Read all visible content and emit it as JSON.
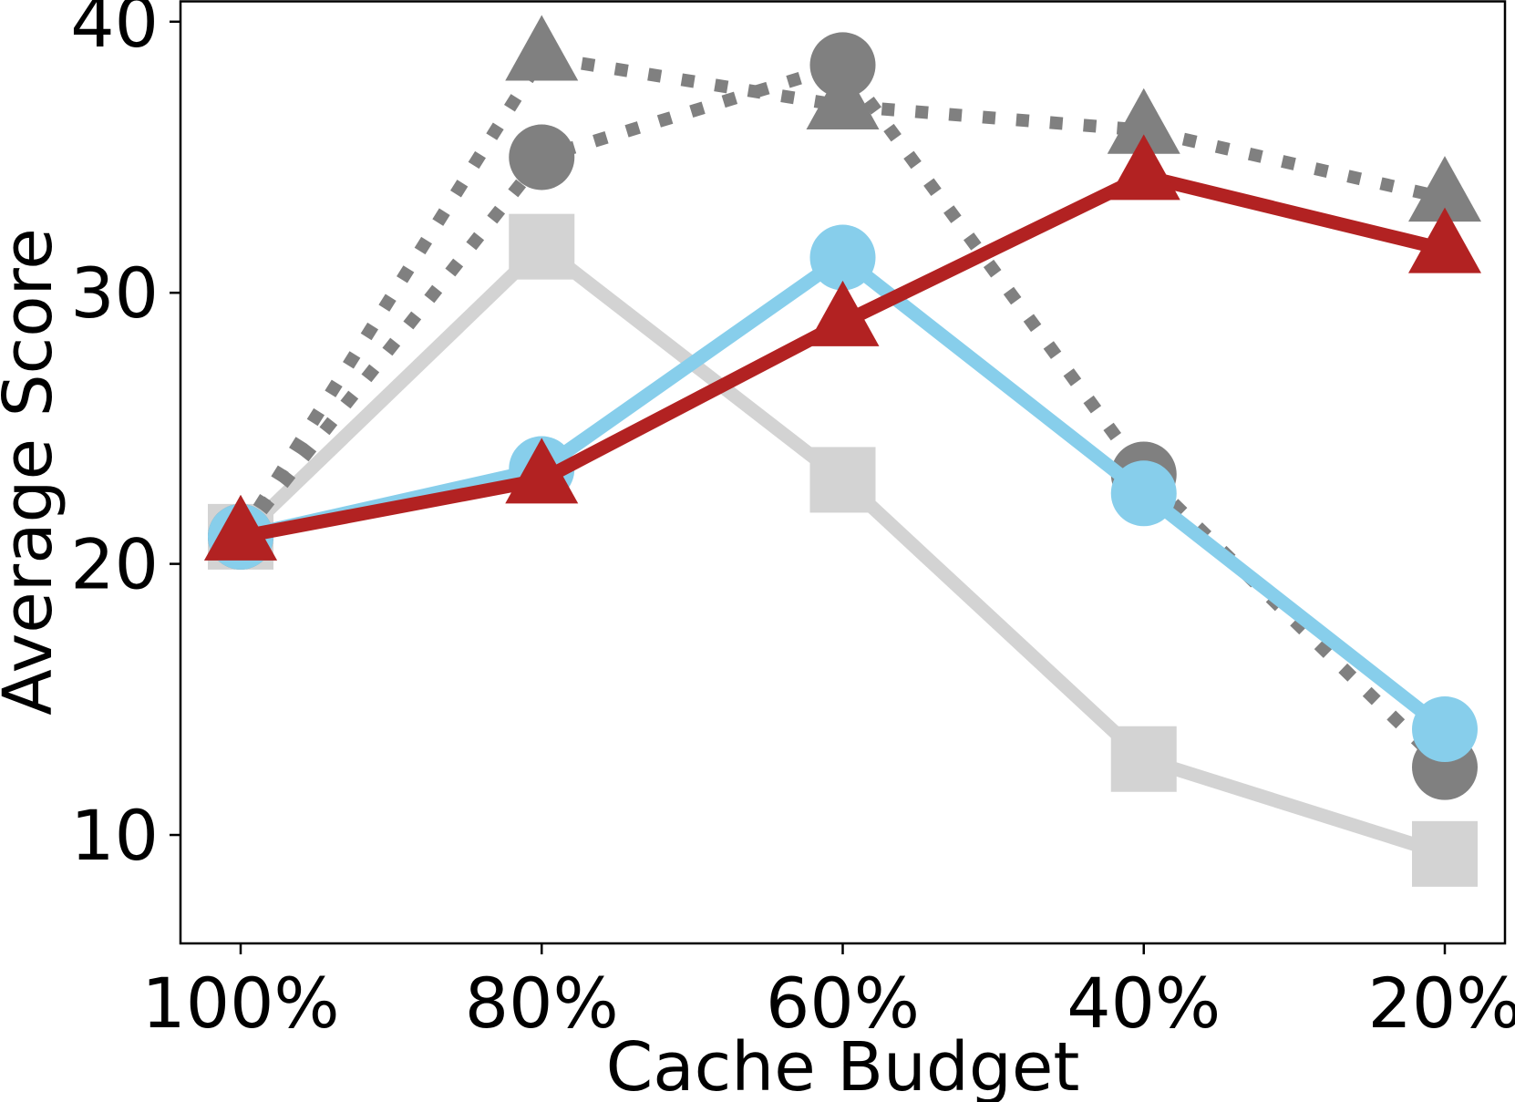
{
  "chart_data": {
    "type": "line",
    "xlabel": "Cache Budget",
    "ylabel": "Average Score",
    "categories": [
      "100%",
      "80%",
      "60%",
      "40%",
      "20%"
    ],
    "ylim": [
      6.0,
      40.8
    ],
    "yticks": [
      10,
      20,
      30,
      40
    ],
    "grid": false,
    "legend": "none",
    "series": [
      {
        "color": "#d3d3d3",
        "line": "solid",
        "marker": "square",
        "values": [
          21.0,
          31.7,
          23.1,
          12.8,
          9.3
        ]
      },
      {
        "color": "#808080",
        "line": "dotted",
        "marker": "triangle",
        "values": [
          21.0,
          38.7,
          36.9,
          36.0,
          33.5
        ]
      },
      {
        "color": "#808080",
        "line": "dotted",
        "marker": "circle",
        "values": [
          21.0,
          35.0,
          38.4,
          23.3,
          12.5
        ]
      },
      {
        "color": "#87ceeb",
        "line": "solid",
        "marker": "circle",
        "values": [
          21.0,
          23.5,
          31.3,
          22.6,
          13.9
        ]
      },
      {
        "color": "#b22222",
        "line": "solid",
        "marker": "triangle",
        "values": [
          21.0,
          23.1,
          28.9,
          34.3,
          31.6
        ]
      }
    ]
  }
}
